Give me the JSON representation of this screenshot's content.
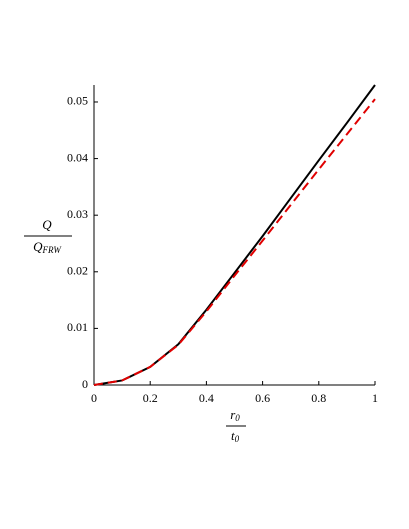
{
  "chart_data": {
    "type": "line",
    "x": [
      0,
      0.1,
      0.2,
      0.3,
      0.4,
      0.5,
      0.6,
      0.7,
      0.8,
      0.9,
      1
    ],
    "series": [
      {
        "color": "#000000",
        "dash": false,
        "values": [
          0,
          0.0008,
          0.0032,
          0.0072,
          0.0133,
          0.0198,
          0.0263,
          0.033,
          0.0397,
          0.0463,
          0.053
        ]
      },
      {
        "color": "#e00000",
        "dash": true,
        "values": [
          0,
          0.0008,
          0.0032,
          0.0071,
          0.013,
          0.0193,
          0.0255,
          0.0318,
          0.0381,
          0.0443,
          0.0505
        ]
      }
    ],
    "xlim": [
      0,
      1
    ],
    "xticks": [
      0,
      0.2,
      0.4,
      0.6,
      0.8,
      1
    ],
    "ylim": [
      0,
      0.053
    ],
    "yticks": [
      0,
      0.01,
      0.02,
      0.03,
      0.04,
      0.05
    ],
    "xlabel": {
      "numerator": "r",
      "numerator_sub": "0",
      "denominator": "t",
      "denominator_sub": "0"
    },
    "ylabel": {
      "numerator": "Q",
      "denominator": "Q",
      "denominator_sub": "FRW"
    }
  }
}
